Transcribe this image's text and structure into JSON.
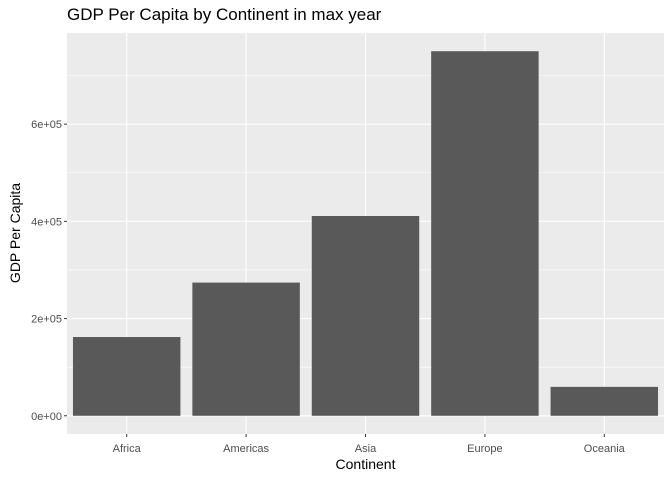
{
  "chart_data": {
    "type": "bar",
    "title": "GDP Per Capita by Continent in max year",
    "xlabel": "Continent",
    "ylabel": "GDP Per Capita",
    "categories": [
      "Africa",
      "Americas",
      "Asia",
      "Europe",
      "Oceania"
    ],
    "values": [
      162000,
      274000,
      411000,
      750000,
      59500
    ],
    "ylim": [
      -37500,
      787500
    ],
    "y_ticks": [
      0,
      200000,
      400000,
      600000
    ],
    "y_tick_labels": [
      "0e+00",
      "2e+05",
      "4e+05",
      "6e+05"
    ],
    "grid": true,
    "legend": "none",
    "colors": {
      "panel": "#ebebeb",
      "grid": "#ffffff",
      "bar": "#595959",
      "tick_text": "#4d4d4d",
      "tick_mark": "#333333"
    }
  }
}
